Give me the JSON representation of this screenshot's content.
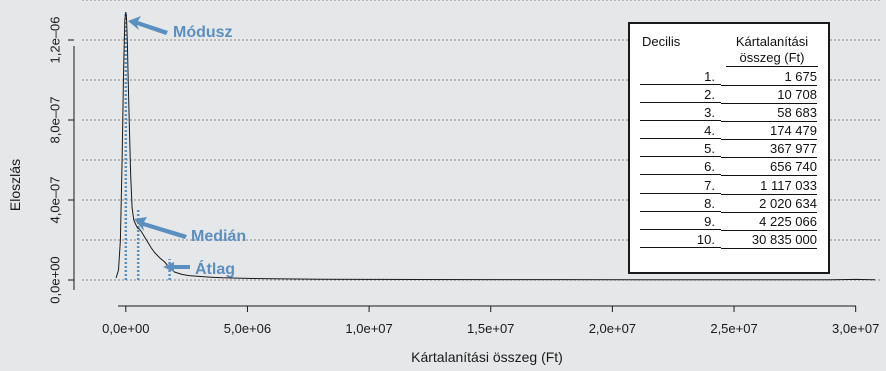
{
  "chart_data": {
    "type": "line",
    "xlabel": "Kártalanítási összeg (Ft)",
    "ylabel": "Eloszlás",
    "x_ticks": [
      "0,0e+00",
      "5,0e+06",
      "1,0e+07",
      "1,5e+07",
      "2,0e+07",
      "2,5e+07",
      "3,0e+07"
    ],
    "x_tick_values": [
      0,
      5000000,
      10000000,
      15000000,
      20000000,
      25000000,
      30000000
    ],
    "y_ticks": [
      "0,0e+00",
      "4,0e–07",
      "8,0e–07",
      "1,2e–06"
    ],
    "y_tick_values": [
      0,
      4e-07,
      8e-07,
      1.2e-06
    ],
    "xlim": [
      -1800000,
      31000000
    ],
    "ylim": [
      -1e-07,
      1.36e-06
    ],
    "grid": true,
    "series": [
      {
        "x": [
          -400000,
          -300000,
          -220000,
          -150000,
          -90000,
          -40000,
          0,
          30000,
          60000,
          100000,
          150000,
          200000,
          260000,
          330000,
          400000,
          480000,
          560000,
          650000,
          750000,
          900000,
          1050000,
          1200000,
          1400000,
          1600000,
          1800000,
          2000000,
          2300000,
          2600000,
          3000000,
          3500000,
          4000000,
          5000000,
          6000000,
          7000000,
          8000000,
          10000000,
          12000000,
          15000000,
          18000000,
          21000000,
          24000000,
          27000000,
          29000000,
          30000000,
          30800000
        ],
        "y": [
          1e-08,
          5e-08,
          2e-07,
          6e-07,
          1.05e-06,
          1.3e-06,
          1.34e-06,
          1.31e-06,
          1.2e-06,
          1e-06,
          7.6e-07,
          5.2e-07,
          3.6e-07,
          3e-07,
          2.8e-07,
          2.6e-07,
          2.55e-07,
          2.4e-07,
          2.2e-07,
          1.9e-07,
          1.6e-07,
          1.35e-07,
          1.1e-07,
          9e-08,
          6e-08,
          4e-08,
          2.8e-08,
          2.2e-08,
          1.8e-08,
          1.4e-08,
          1.1e-08,
          8e-09,
          6e-09,
          5e-09,
          4e-09,
          3e-09,
          2.5e-09,
          2e-09,
          1.8e-09,
          1.5e-09,
          1.2e-09,
          1e-09,
          8e-10,
          3e-09,
          1e-09
        ]
      }
    ],
    "markers": [
      {
        "label": "Módusz",
        "x": 0,
        "y_top": 1.34e-06
      },
      {
        "label": "Medián",
        "x": 510000,
        "y_top": 3.55e-07
      },
      {
        "label": "Átlag",
        "x": 1800000,
        "y_top": 1.05e-07
      }
    ],
    "colors": {
      "curve": "#1a1a1a",
      "marker": "#5b8fc0",
      "grid": "#8a8a8a",
      "background": "#e6e7e8"
    }
  },
  "table": {
    "header_left": "Decilis",
    "header_right_1": "Kártalanítási",
    "header_right_2": "összeg (Ft)",
    "rows": [
      {
        "decile": "1.",
        "value": "1 675"
      },
      {
        "decile": "2.",
        "value": "10 708"
      },
      {
        "decile": "3.",
        "value": "58 683"
      },
      {
        "decile": "4.",
        "value": "174 479"
      },
      {
        "decile": "5.",
        "value": "367 977"
      },
      {
        "decile": "6.",
        "value": "656 740"
      },
      {
        "decile": "7.",
        "value": "1 117 033"
      },
      {
        "decile": "8.",
        "value": "2 020 634"
      },
      {
        "decile": "9.",
        "value": "4 225 066"
      },
      {
        "decile": "10.",
        "value": "30 835 000"
      }
    ]
  }
}
